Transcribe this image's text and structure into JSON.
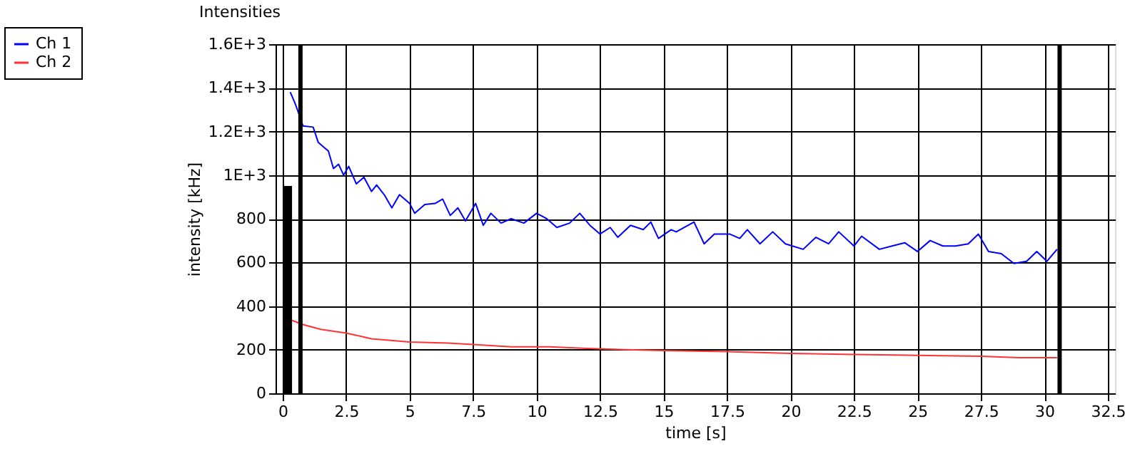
{
  "chart_data": {
    "type": "line",
    "title": "Intensities",
    "xlabel": "time [s]",
    "ylabel": "intensity [kHz]",
    "xlim": [
      0,
      32.5
    ],
    "xticks": [
      0,
      2.5,
      5,
      7.5,
      10,
      12.5,
      15,
      17.5,
      20,
      22.5,
      25,
      27.5,
      30,
      32.5
    ],
    "ylim": [
      0,
      1600
    ],
    "yticks": [
      0,
      200,
      400,
      600,
      800,
      {
        "value": 1000,
        "label": "1E+3"
      },
      {
        "value": 1200,
        "label": "1.2E+3"
      },
      {
        "value": 1400,
        "label": "1.4E+3"
      },
      {
        "value": 1600,
        "label": "1.6E+3"
      }
    ],
    "grid": true,
    "legend": "top left",
    "marker": "none",
    "line_style": "solid",
    "series": [
      {
        "name": "Ch 1",
        "color": "#0000ff",
        "x": [
          0.3,
          0.5,
          0.7,
          0.8,
          1.2,
          1.4,
          1.6,
          1.8,
          2.0,
          2.2,
          2.4,
          2.6,
          2.9,
          3.2,
          3.5,
          3.7,
          4.0,
          4.3,
          4.6,
          5.0,
          5.2,
          5.6,
          6.0,
          6.3,
          6.6,
          6.9,
          7.2,
          7.6,
          7.9,
          8.2,
          8.6,
          9.0,
          9.5,
          10.0,
          10.4,
          10.8,
          11.3,
          11.7,
          12.1,
          12.5,
          12.9,
          13.2,
          13.7,
          14.2,
          14.5,
          14.8,
          15.3,
          15.5,
          16.2,
          16.6,
          17.0,
          17.6,
          18.0,
          18.3,
          18.8,
          19.3,
          19.8,
          20.5,
          21.0,
          21.5,
          21.9,
          22.5,
          22.8,
          23.5,
          24.0,
          24.5,
          25.0,
          25.5,
          26.0,
          26.5,
          27.0,
          27.4,
          27.8,
          28.3,
          28.8,
          29.3,
          29.7,
          30.1,
          30.5
        ],
        "values": [
          1380,
          1325,
          1260,
          1225,
          1220,
          1150,
          1130,
          1110,
          1030,
          1050,
          1000,
          1040,
          960,
          990,
          925,
          955,
          910,
          850,
          910,
          870,
          825,
          865,
          870,
          890,
          815,
          850,
          790,
          870,
          770,
          825,
          780,
          800,
          780,
          825,
          800,
          760,
          780,
          825,
          770,
          730,
          760,
          715,
          770,
          750,
          785,
          710,
          750,
          740,
          785,
          685,
          730,
          730,
          710,
          750,
          685,
          740,
          685,
          660,
          715,
          685,
          740,
          675,
          720,
          660,
          675,
          690,
          650,
          700,
          675,
          675,
          685,
          730,
          650,
          640,
          595,
          605,
          650,
          605,
          660
        ]
      },
      {
        "name": "Ch 2",
        "color": "#ff3333",
        "x": [
          0.3,
          0.8,
          1.5,
          2.5,
          3.5,
          5.0,
          6.5,
          7.5,
          9.0,
          10.5,
          12.0,
          13.5,
          15.0,
          17.5,
          20.0,
          22.5,
          25.0,
          27.5,
          29.0,
          30.5
        ],
        "values": [
          337,
          315,
          293,
          276,
          250,
          235,
          230,
          224,
          213,
          213,
          206,
          200,
          196,
          191,
          183,
          178,
          174,
          170,
          163,
          163
        ]
      },
      {
        "type": "bar",
        "color": "#000000",
        "x": [
          0.2
        ],
        "values": [
          950
        ]
      }
    ],
    "ref_lines": [
      {
        "axis": "x",
        "value": 0.7,
        "color": "#000000"
      },
      {
        "axis": "x",
        "value": 30.6,
        "color": "#000000"
      }
    ]
  }
}
